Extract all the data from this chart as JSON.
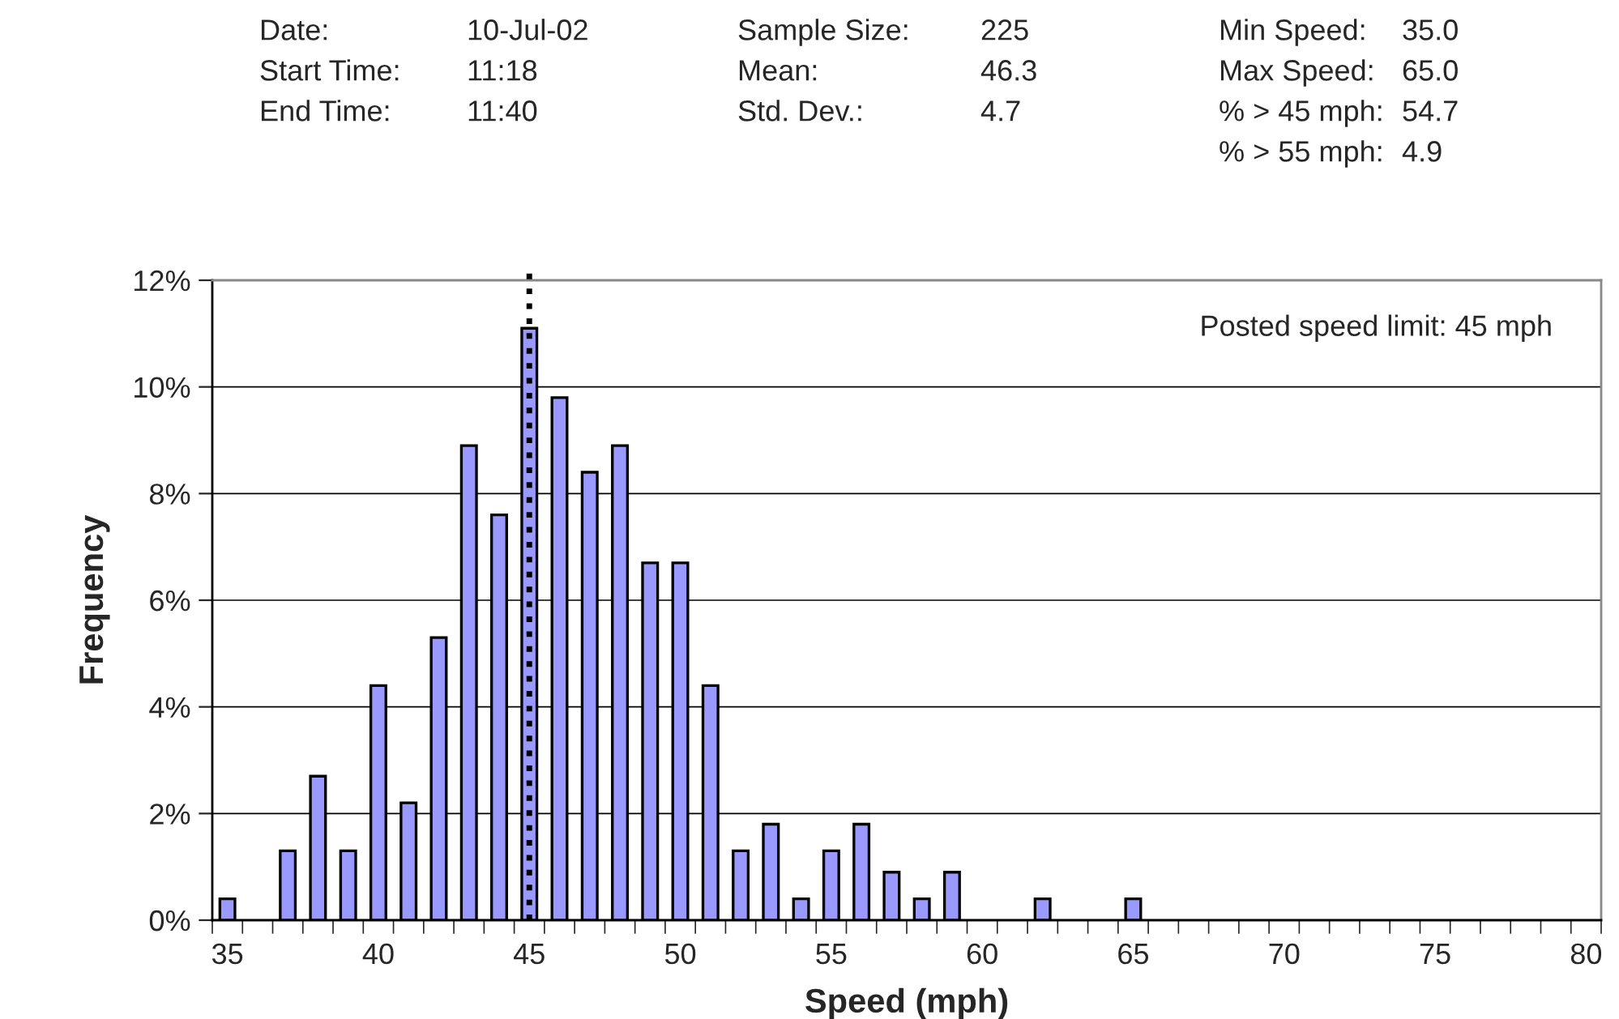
{
  "chart_data": {
    "type": "bar",
    "xlabel": "Speed (mph)",
    "ylabel": "Frequency",
    "categories": [
      "35",
      null,
      null,
      null,
      null,
      "40",
      null,
      null,
      null,
      null,
      "45",
      null,
      null,
      null,
      null,
      "50",
      null,
      null,
      null,
      null,
      "55",
      null,
      null,
      null,
      null,
      "60",
      null,
      null,
      null,
      null,
      "65",
      null,
      null,
      null,
      null,
      "70",
      null,
      null,
      null,
      null,
      "75",
      null,
      null,
      null,
      null,
      "80"
    ],
    "values": [
      0.4,
      null,
      1.3,
      2.7,
      1.3,
      4.4,
      2.2,
      5.3,
      8.9,
      7.6,
      11.1,
      9.8,
      8.4,
      8.9,
      6.7,
      6.7,
      4.4,
      1.3,
      1.8,
      0.4,
      1.3,
      1.8,
      0.9,
      0.4,
      0.9,
      null,
      null,
      0.4,
      null,
      null,
      0.4,
      null,
      null,
      null,
      null,
      null,
      null,
      null,
      null,
      null,
      null,
      null,
      null,
      null,
      null,
      null
    ],
    "color": "#9999ff",
    "ylim": [
      0,
      12
    ],
    "yticks": [
      {
        "value": 0,
        "label": "0%"
      },
      {
        "value": 2,
        "label": "2%"
      },
      {
        "value": 4,
        "label": "4%"
      },
      {
        "value": 6,
        "label": "6%"
      },
      {
        "value": 8,
        "label": "8%"
      },
      {
        "value": 10,
        "label": "10%"
      },
      {
        "value": 12,
        "label": "12%"
      }
    ],
    "grid": "y",
    "ref_lines": [
      {
        "axis": "x",
        "value": "45",
        "line_style": "dotted",
        "color": "#000000"
      }
    ],
    "annotations": [
      "Date:",
      "10-Jul-02",
      "Start Time:",
      "11:18",
      "End Time:",
      "11:40",
      "Sample Size:",
      "225",
      "Mean:",
      "46.3",
      "Std. Dev.:",
      "4.7",
      "Min Speed:",
      "35.0",
      "Max Speed:",
      "65.0",
      "% > 45 mph:",
      "54.7",
      "% > 55 mph:",
      "4.9",
      "Posted speed limit: 45 mph"
    ]
  }
}
